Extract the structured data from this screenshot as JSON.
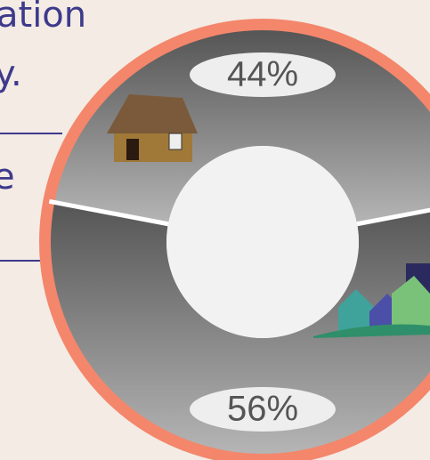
{
  "page_text": [
    "ation",
    "y.",
    "e"
  ],
  "chart_data": {
    "type": "donut",
    "values": [
      44,
      56
    ],
    "value_labels": [
      "44%",
      "56%"
    ],
    "color": "#7a7a7a"
  }
}
